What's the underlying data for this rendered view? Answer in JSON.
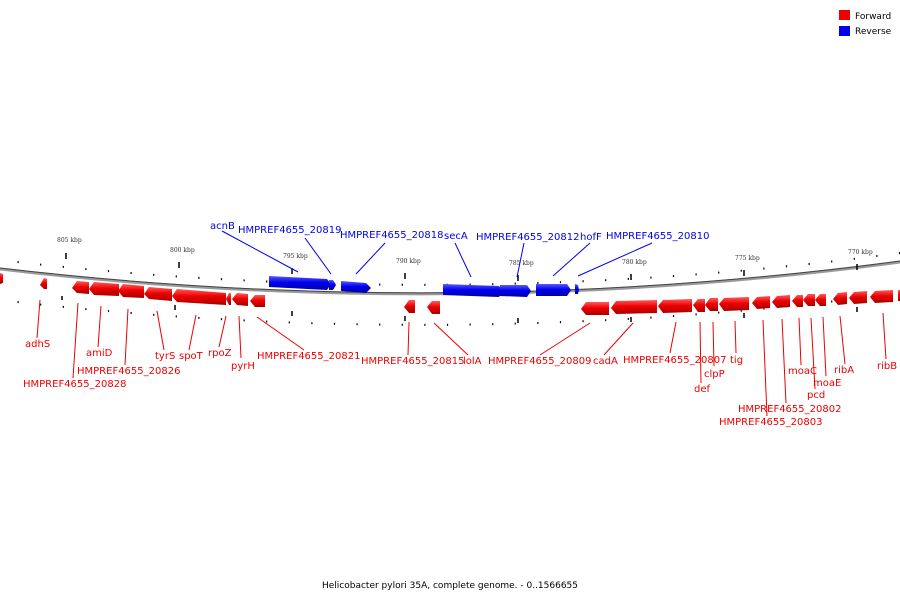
{
  "legend": {
    "forward_label": "Forward",
    "reverse_label": "Reverse",
    "forward_color": "#ee0000",
    "reverse_color": "#0000ee"
  },
  "caption": "Helicobacter pylori 35A, complete genome. - 0..1566655",
  "axis_ticks": [
    "805 kbp",
    "800 kbp",
    "795 kbp",
    "790 kbp",
    "785 kbp",
    "780 kbp",
    "775 kbp",
    "770 kbp"
  ],
  "reverse_genes": [
    "acnB",
    "HMPREF4655_20819",
    "HMPREF4655_20818",
    "secA",
    "HMPREF4655_20812",
    "hofF",
    "HMPREF4655_20810"
  ],
  "forward_genes": [
    "adhS",
    "amiD",
    "HMPREF4655_20828",
    "HMPREF4655_20826",
    "tyrS",
    "spoT",
    "rpoZ",
    "pyrH",
    "HMPREF4655_20821",
    "HMPREF4655_20815",
    "lolA",
    "HMPREF4655_20809",
    "cadA",
    "HMPREF4655_20807",
    "def",
    "clpP",
    "tig",
    "HMPREF4655_20802",
    "HMPREF4655_20803",
    "moaC",
    "pcd",
    "moaE",
    "ribA",
    "ribB"
  ]
}
